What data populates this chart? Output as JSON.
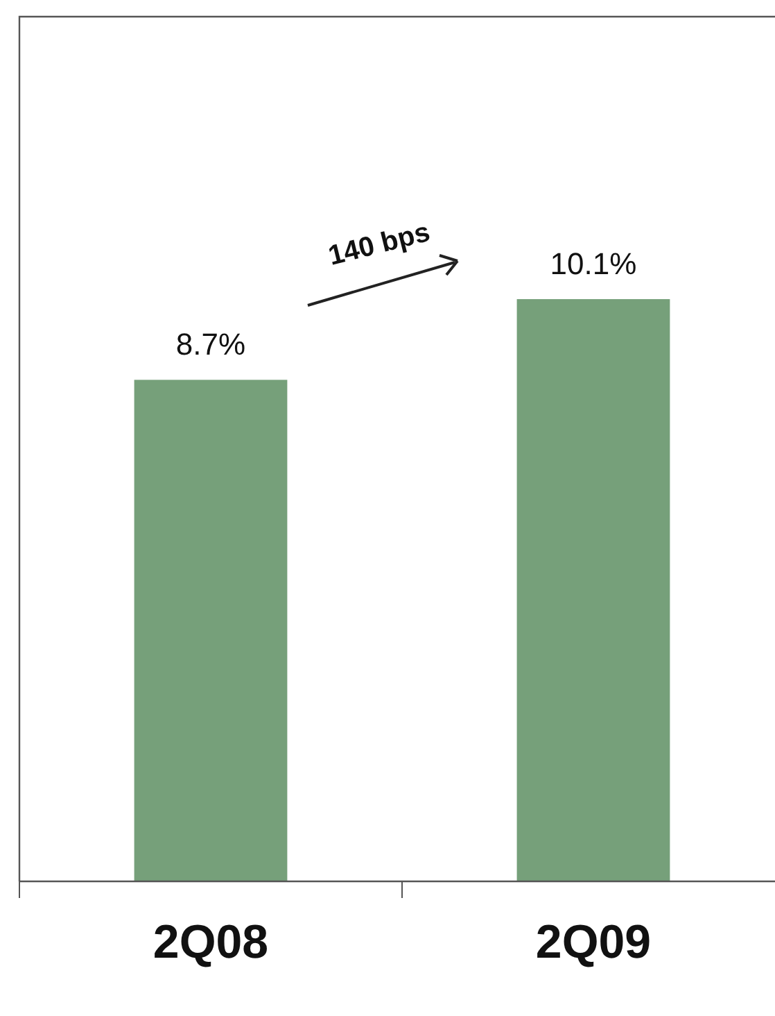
{
  "chart_data": {
    "type": "bar",
    "categories": [
      "2Q08",
      "2Q09"
    ],
    "values": [
      8.7,
      10.1
    ],
    "value_labels": [
      "8.7%",
      "10.1%"
    ],
    "color": "#76a07a",
    "ylim": [
      0,
      15
    ],
    "tick_labels": "x",
    "annotations": [
      "140 bps"
    ]
  }
}
